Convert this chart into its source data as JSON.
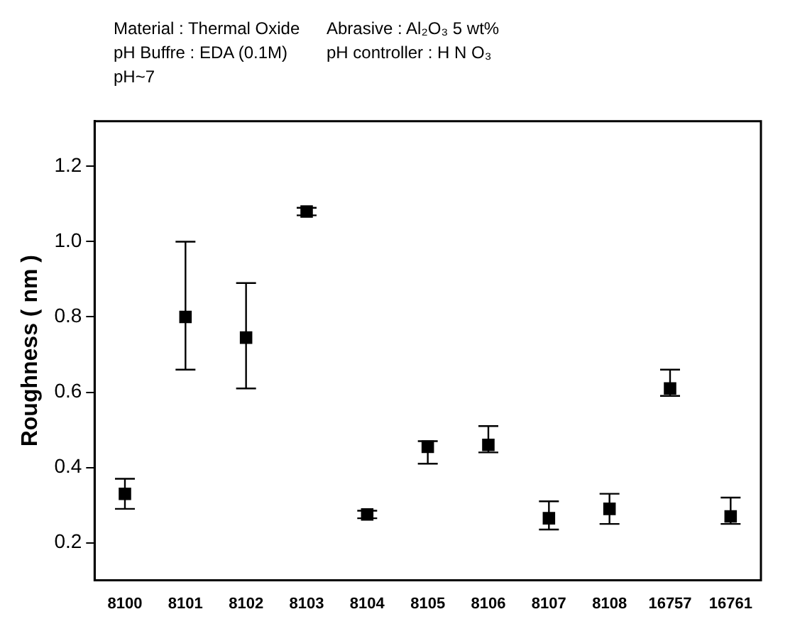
{
  "chart_data": {
    "type": "scatter",
    "annotations": [
      "Material : Thermal Oxide",
      "pH Buffre : EDA (0.1M)",
      "pH~7",
      "Abrasive : Al₂O₃  5 wt%",
      "pH controller : H N O₃"
    ],
    "ylabel": "Roughness ( nm )",
    "categories": [
      "8100",
      "8101",
      "8102",
      "8103",
      "8104",
      "8105",
      "8106",
      "8107",
      "8108",
      "16757",
      "16761"
    ],
    "series": [
      {
        "color": "#000000",
        "values": [
          0.33,
          0.8,
          0.745,
          1.08,
          0.275,
          0.455,
          0.46,
          0.265,
          0.29,
          0.61,
          0.27
        ],
        "errors": [
          [
            0.29,
            0.37
          ],
          [
            0.66,
            1.0
          ],
          [
            0.61,
            0.89
          ],
          [
            1.07,
            1.09
          ],
          [
            0.265,
            0.285
          ],
          [
            0.41,
            0.47
          ],
          [
            0.44,
            0.51
          ],
          [
            0.235,
            0.31
          ],
          [
            0.25,
            0.33
          ],
          [
            0.59,
            0.66
          ],
          [
            0.25,
            0.32
          ]
        ]
      }
    ],
    "ylim": [
      0.1,
      1.32
    ],
    "yticks": [
      0.2,
      0.4,
      0.6,
      0.8,
      {
        "value": 1,
        "label": "1.0"
      },
      1.2
    ],
    "marker": "square",
    "grid": false,
    "legend": false
  }
}
